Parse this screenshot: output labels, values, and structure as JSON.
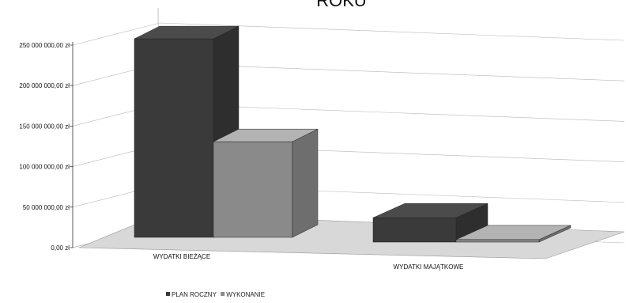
{
  "chart_data": {
    "type": "bar",
    "title": "ROKU",
    "categories": [
      "WYDATKI BIEŻĄCE",
      "WYDATKI MAJĄTKOWE"
    ],
    "series": [
      {
        "name": "PLAN ROCZNY",
        "values": [
          245000000,
          30000000
        ],
        "color": "#3a3a3a"
      },
      {
        "name": "WYKONANIE",
        "values": [
          118000000,
          3000000
        ],
        "color": "#8a8a8a"
      }
    ],
    "y_ticks": [
      "0,00 zł",
      "50 000 000,00 zł",
      "100 000 000,00 zł",
      "150 000 000,00 zł",
      "200 000 000,00 zł",
      "250 000 000,00 zł"
    ],
    "ylim": [
      0,
      250000000
    ],
    "legend_position": "bottom",
    "grid": true,
    "style": "3d-column"
  },
  "colors": {
    "floor": "#d8d8d8",
    "grid": "#b8b8b8",
    "wall": "#ffffff"
  }
}
